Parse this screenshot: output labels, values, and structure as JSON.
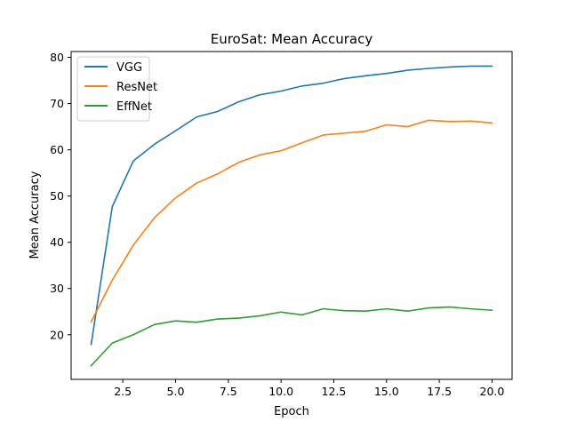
{
  "chart_data": {
    "type": "line",
    "title": "EuroSat: Mean Accuracy",
    "xlabel": "Epoch",
    "ylabel": "Mean Accuracy",
    "x": [
      1,
      2,
      3,
      4,
      5,
      6,
      7,
      8,
      9,
      10,
      11,
      12,
      13,
      14,
      15,
      16,
      17,
      18,
      19,
      20
    ],
    "xlim": [
      0.05,
      20.95
    ],
    "ylim": [
      10.35,
      81.25
    ],
    "xticks": [
      2.5,
      5.0,
      7.5,
      10.0,
      12.5,
      15.0,
      17.5,
      20.0
    ],
    "xtick_labels": [
      "2.5",
      "5.0",
      "7.5",
      "10.0",
      "12.5",
      "15.0",
      "17.5",
      "20.0"
    ],
    "yticks": [
      20,
      30,
      40,
      50,
      60,
      70,
      80
    ],
    "ytick_labels": [
      "20",
      "30",
      "40",
      "50",
      "60",
      "70",
      "80"
    ],
    "grid": false,
    "legend_position": "upper-left",
    "series": [
      {
        "name": "VGG",
        "color": "#1f77b4",
        "values": [
          17.9,
          47.7,
          57.6,
          61.2,
          64.1,
          67.1,
          68.3,
          70.4,
          71.9,
          72.7,
          73.8,
          74.4,
          75.4,
          76.0,
          76.5,
          77.2,
          77.6,
          77.9,
          78.1,
          78.1
        ]
      },
      {
        "name": "ResNet",
        "color": "#ff7f0e",
        "values": [
          22.8,
          31.8,
          39.4,
          45.3,
          49.6,
          52.8,
          54.8,
          57.3,
          58.9,
          59.8,
          61.5,
          63.2,
          63.6,
          64.0,
          65.4,
          65.0,
          66.4,
          66.1,
          66.2,
          65.8
        ]
      },
      {
        "name": "EffNet",
        "color": "#2ca02c",
        "values": [
          13.3,
          18.2,
          20.0,
          22.2,
          23.0,
          22.7,
          23.4,
          23.6,
          24.1,
          24.9,
          24.3,
          25.6,
          25.2,
          25.1,
          25.6,
          25.1,
          25.8,
          26.0,
          25.6,
          25.3
        ]
      }
    ]
  }
}
